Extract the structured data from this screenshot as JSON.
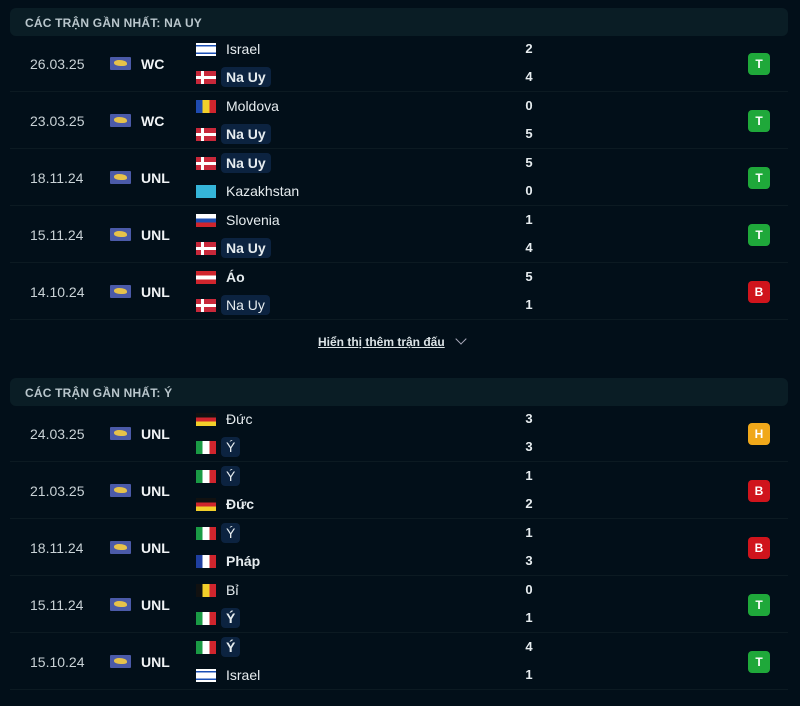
{
  "sections": [
    {
      "title": "CÁC TRẬN GẦN NHẤT: NA UY",
      "matches": [
        {
          "date": "26.03.25",
          "comp": "WC",
          "home": {
            "name": "Israel",
            "flag": "il",
            "bold": false,
            "hl": false
          },
          "away": {
            "name": "Na Uy",
            "flag": "no",
            "bold": true,
            "hl": true
          },
          "score": [
            "2",
            "4"
          ],
          "result": "T"
        },
        {
          "date": "23.03.25",
          "comp": "WC",
          "home": {
            "name": "Moldova",
            "flag": "md",
            "bold": false,
            "hl": false
          },
          "away": {
            "name": "Na Uy",
            "flag": "no",
            "bold": true,
            "hl": true
          },
          "score": [
            "0",
            "5"
          ],
          "result": "T"
        },
        {
          "date": "18.11.24",
          "comp": "UNL",
          "home": {
            "name": "Na Uy",
            "flag": "no",
            "bold": true,
            "hl": true
          },
          "away": {
            "name": "Kazakhstan",
            "flag": "kz",
            "bold": false,
            "hl": false
          },
          "score": [
            "5",
            "0"
          ],
          "result": "T"
        },
        {
          "date": "15.11.24",
          "comp": "UNL",
          "home": {
            "name": "Slovenia",
            "flag": "si",
            "bold": false,
            "hl": false
          },
          "away": {
            "name": "Na Uy",
            "flag": "no",
            "bold": true,
            "hl": true
          },
          "score": [
            "1",
            "4"
          ],
          "result": "T"
        },
        {
          "date": "14.10.24",
          "comp": "UNL",
          "home": {
            "name": "Áo",
            "flag": "at",
            "bold": true,
            "hl": false
          },
          "away": {
            "name": "Na Uy",
            "flag": "no",
            "bold": false,
            "hl": true
          },
          "score": [
            "5",
            "1"
          ],
          "result": "B"
        }
      ]
    },
    {
      "title": "CÁC TRẬN GẦN NHẤT: Ý",
      "matches": [
        {
          "date": "24.03.25",
          "comp": "UNL",
          "home": {
            "name": "Đức",
            "flag": "de",
            "bold": false,
            "hl": false
          },
          "away": {
            "name": "Ý",
            "flag": "it",
            "bold": false,
            "hl": true
          },
          "score": [
            "3",
            "3"
          ],
          "result": "H"
        },
        {
          "date": "21.03.25",
          "comp": "UNL",
          "home": {
            "name": "Ý",
            "flag": "it",
            "bold": false,
            "hl": true
          },
          "away": {
            "name": "Đức",
            "flag": "de",
            "bold": true,
            "hl": false
          },
          "score": [
            "1",
            "2"
          ],
          "result": "B"
        },
        {
          "date": "18.11.24",
          "comp": "UNL",
          "home": {
            "name": "Ý",
            "flag": "it",
            "bold": false,
            "hl": true
          },
          "away": {
            "name": "Pháp",
            "flag": "fr",
            "bold": true,
            "hl": false
          },
          "score": [
            "1",
            "3"
          ],
          "result": "B"
        },
        {
          "date": "15.11.24",
          "comp": "UNL",
          "home": {
            "name": "Bỉ",
            "flag": "be",
            "bold": false,
            "hl": false
          },
          "away": {
            "name": "Ý",
            "flag": "it",
            "bold": true,
            "hl": true
          },
          "score": [
            "0",
            "1"
          ],
          "result": "T"
        },
        {
          "date": "15.10.24",
          "comp": "UNL",
          "home": {
            "name": "Ý",
            "flag": "it",
            "bold": true,
            "hl": true
          },
          "away": {
            "name": "Israel",
            "flag": "il",
            "bold": false,
            "hl": false
          },
          "score": [
            "4",
            "1"
          ],
          "result": "T"
        }
      ]
    }
  ],
  "show_more": "Hiển thị thêm trận đấu",
  "result_colors": {
    "T": "#1fa83a",
    "B": "#d0141c",
    "H": "#f0a81a"
  }
}
